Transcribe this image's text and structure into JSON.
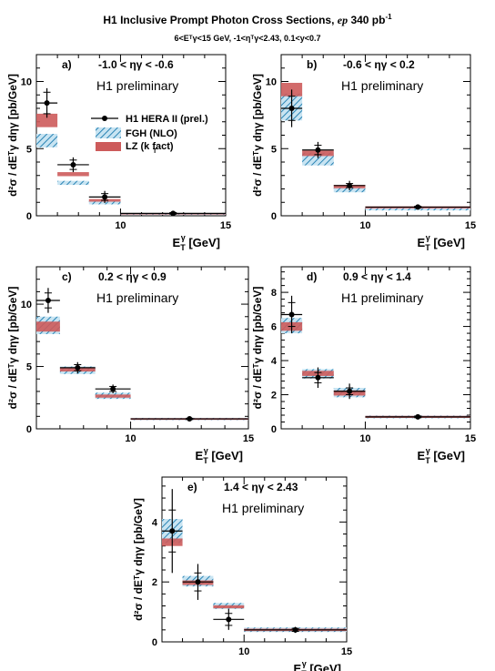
{
  "header": {
    "title_main": "H1 Inclusive Prompt Photon Cross Sections, ",
    "title_italic": "ep",
    "title_lumi": " 340 pb",
    "title_lumi_sup": "-1",
    "cuts": "6<Eᵀγ<15 GeV, -1<ηᵀγ<2.43, 0.1<y<0.7"
  },
  "colors": {
    "data": "#000000",
    "fgh_stroke": "#2a84b4",
    "fgh_fill": "#c8e4f2",
    "lz_fill": "#cd5b5b"
  },
  "legend": {
    "data": "H1 HERA II (prel.)",
    "fgh": "FGH (NLO)",
    "lz": "LZ (k  fact)",
    "lz_sub": "T",
    "placement": "inside panel a, right of first data point"
  },
  "axis_labels": {
    "x_main": "E",
    "x_sub": "T",
    "x_sup": "γ",
    "x_unit": " [GeV]",
    "y_text": "d²σ / dEᵀγ dηγ [pb/GeV]"
  },
  "chart_data": [
    {
      "type": "scatter",
      "label": "a)",
      "eta_range": "-1.0 < ηγ < -0.6",
      "note": "H1 preliminary",
      "xlim": [
        6,
        15
      ],
      "ylim": [
        0,
        12
      ],
      "xticks": [
        10,
        15
      ],
      "yticks": [
        0,
        5,
        10
      ],
      "bins": [
        [
          6,
          7
        ],
        [
          7,
          8.5
        ],
        [
          8.5,
          10
        ],
        [
          10,
          15
        ]
      ],
      "data": {
        "y": [
          8.4,
          3.8,
          1.4,
          0.18
        ],
        "stat": [
          0.8,
          0.35,
          0.25,
          0.06
        ],
        "tot": [
          1.1,
          0.55,
          0.45,
          0.1
        ]
      },
      "fgh": {
        "lo": [
          5.1,
          2.3,
          0.85,
          0.1
        ],
        "hi": [
          6.1,
          2.6,
          1.1,
          0.17
        ]
      },
      "lz": {
        "lo": [
          6.6,
          2.95,
          1.05,
          0.14
        ],
        "hi": [
          7.6,
          3.25,
          1.25,
          0.2
        ]
      }
    },
    {
      "type": "scatter",
      "label": "b)",
      "eta_range": "-0.6 < ηγ < 0.2",
      "note": "H1 preliminary",
      "xlim": [
        6,
        15
      ],
      "ylim": [
        0,
        12
      ],
      "xticks": [
        10,
        15
      ],
      "yticks": [
        0,
        5,
        10
      ],
      "bins": [
        [
          6,
          7
        ],
        [
          7,
          8.5
        ],
        [
          8.5,
          10
        ],
        [
          10,
          15
        ]
      ],
      "data": {
        "y": [
          8.0,
          4.9,
          2.25,
          0.65
        ],
        "stat": [
          0.9,
          0.35,
          0.15,
          0.06
        ],
        "tot": [
          1.4,
          0.6,
          0.35,
          0.12
        ]
      },
      "fgh": {
        "lo": [
          7.1,
          3.75,
          1.75,
          0.4
        ],
        "hi": [
          9.1,
          4.7,
          2.1,
          0.65
        ]
      },
      "lz": {
        "lo": [
          8.9,
          4.45,
          2.05,
          0.55
        ],
        "hi": [
          9.9,
          4.85,
          2.3,
          0.7
        ]
      }
    },
    {
      "type": "scatter",
      "label": "c)",
      "eta_range": "0.2 < ηγ < 0.9",
      "note": "H1 preliminary",
      "xlim": [
        6,
        15
      ],
      "ylim": [
        0,
        13
      ],
      "xticks": [
        10,
        15
      ],
      "yticks": [
        0,
        5,
        10
      ],
      "bins": [
        [
          6,
          7
        ],
        [
          7,
          8.5
        ],
        [
          8.5,
          10
        ],
        [
          10,
          15
        ]
      ],
      "data": {
        "y": [
          10.3,
          4.9,
          3.2,
          0.8
        ],
        "stat": [
          0.6,
          0.25,
          0.2,
          0.05
        ],
        "tot": [
          1.0,
          0.45,
          0.35,
          0.1
        ]
      },
      "fgh": {
        "lo": [
          7.6,
          4.4,
          2.4,
          0.7
        ],
        "hi": [
          9.0,
          5.0,
          2.9,
          0.88
        ]
      },
      "lz": {
        "lo": [
          7.8,
          4.6,
          2.5,
          0.72
        ],
        "hi": [
          8.6,
          4.9,
          2.75,
          0.86
        ]
      }
    },
    {
      "type": "scatter",
      "label": "d)",
      "eta_range": "0.9 < ηγ < 1.4",
      "note": "H1 preliminary",
      "xlim": [
        6,
        15
      ],
      "ylim": [
        0,
        9.5
      ],
      "xticks": [
        10,
        15
      ],
      "yticks": [
        0,
        2,
        4,
        6,
        8
      ],
      "bins": [
        [
          6,
          7
        ],
        [
          7,
          8.5
        ],
        [
          8.5,
          10
        ],
        [
          10,
          15
        ]
      ],
      "data": {
        "y": [
          6.7,
          3.0,
          2.2,
          0.7
        ],
        "stat": [
          0.7,
          0.3,
          0.2,
          0.05
        ],
        "tot": [
          1.1,
          0.6,
          0.45,
          0.1
        ]
      },
      "fgh": {
        "lo": [
          5.6,
          2.95,
          1.85,
          0.62
        ],
        "hi": [
          6.5,
          3.5,
          2.4,
          0.78
        ]
      },
      "lz": {
        "lo": [
          5.75,
          3.1,
          1.95,
          0.64
        ],
        "hi": [
          6.25,
          3.4,
          2.25,
          0.76
        ]
      }
    },
    {
      "type": "scatter",
      "label": "e)",
      "eta_range": "1.4 < ηγ < 2.43",
      "note": "H1 preliminary",
      "xlim": [
        6,
        15
      ],
      "ylim": [
        0,
        5.5
      ],
      "xticks": [
        10,
        15
      ],
      "yticks": [
        0,
        2,
        4
      ],
      "bins": [
        [
          6,
          7
        ],
        [
          7,
          8.5
        ],
        [
          8.5,
          10
        ],
        [
          10,
          15
        ]
      ],
      "data": {
        "y": [
          3.7,
          2.0,
          0.75,
          0.4
        ],
        "stat": [
          0.7,
          0.3,
          0.2,
          0.05
        ],
        "tot": [
          1.4,
          0.6,
          0.35,
          0.1
        ]
      },
      "fgh": {
        "lo": [
          3.3,
          1.85,
          1.1,
          0.33
        ],
        "hi": [
          4.1,
          2.2,
          1.3,
          0.48
        ]
      },
      "lz": {
        "lo": [
          3.2,
          1.9,
          1.12,
          0.36
        ],
        "hi": [
          3.45,
          2.05,
          1.22,
          0.44
        ]
      }
    }
  ]
}
